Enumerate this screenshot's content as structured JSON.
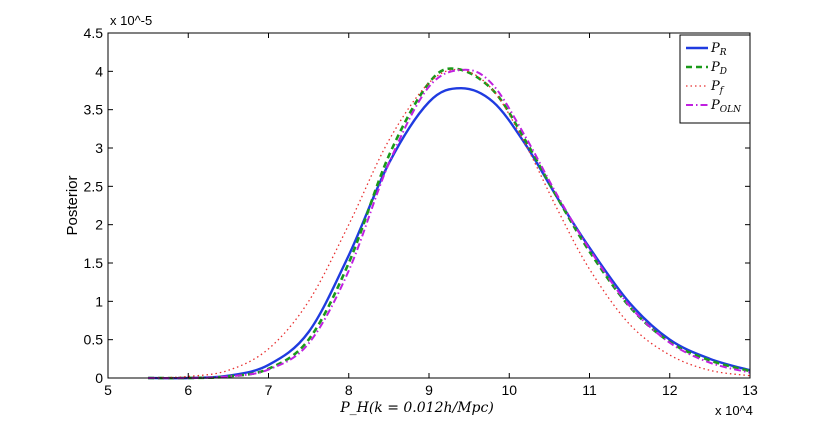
{
  "chart_data": {
    "type": "line",
    "title": "",
    "xlabel": "P_H(k = 0.012h/Mpc)",
    "ylabel": "Posterior",
    "x_multiplier": "x 10^4",
    "y_multiplier": "x 10^-5",
    "xlim": [
      5,
      13
    ],
    "ylim": [
      0,
      4.5
    ],
    "xticks": [
      5,
      6,
      7,
      8,
      9,
      10,
      11,
      12,
      13
    ],
    "yticks": [
      0,
      0.5,
      1,
      1.5,
      2,
      2.5,
      3,
      3.5,
      4,
      4.5
    ],
    "grid": false,
    "legend_position": "top-right",
    "series": [
      {
        "name": "P_R",
        "color": "#1f3be0",
        "style": "solid",
        "x": [
          5.5,
          6.0,
          6.5,
          7.0,
          7.5,
          8.0,
          8.5,
          9.0,
          9.4,
          9.8,
          10.2,
          10.6,
          11.0,
          11.5,
          12.0,
          12.5,
          13.0
        ],
        "y": [
          0.0,
          0.0,
          0.03,
          0.17,
          0.6,
          1.6,
          2.8,
          3.6,
          3.78,
          3.6,
          3.05,
          2.35,
          1.7,
          0.98,
          0.5,
          0.25,
          0.1
        ]
      },
      {
        "name": "P_D",
        "color": "#1a9a1a",
        "style": "dashed",
        "x": [
          5.5,
          6.0,
          6.5,
          7.0,
          7.5,
          8.0,
          8.5,
          9.0,
          9.35,
          9.8,
          10.2,
          10.6,
          11.0,
          11.5,
          12.0,
          12.5,
          13.0
        ],
        "y": [
          0.0,
          0.0,
          0.02,
          0.12,
          0.5,
          1.5,
          2.9,
          3.85,
          4.03,
          3.75,
          3.1,
          2.35,
          1.65,
          0.93,
          0.47,
          0.23,
          0.09
        ]
      },
      {
        "name": "P_f",
        "color": "#e83030",
        "style": "dotted",
        "x": [
          5.5,
          6.0,
          6.5,
          7.0,
          7.5,
          8.0,
          8.5,
          9.0,
          9.4,
          9.8,
          10.2,
          10.6,
          11.0,
          11.5,
          12.0,
          12.5,
          13.0
        ],
        "y": [
          0.0,
          0.02,
          0.1,
          0.38,
          1.0,
          2.0,
          3.1,
          3.85,
          4.02,
          3.75,
          3.05,
          2.2,
          1.42,
          0.7,
          0.3,
          0.1,
          0.03
        ]
      },
      {
        "name": "P_OLN",
        "color": "#c020e0",
        "style": "dashdot",
        "x": [
          5.5,
          6.0,
          6.5,
          7.0,
          7.5,
          8.0,
          8.5,
          9.0,
          9.45,
          9.8,
          10.2,
          10.6,
          11.0,
          11.5,
          12.0,
          12.5,
          13.0
        ],
        "y": [
          0.0,
          0.0,
          0.02,
          0.11,
          0.45,
          1.4,
          2.8,
          3.8,
          4.02,
          3.82,
          3.15,
          2.38,
          1.68,
          0.94,
          0.46,
          0.2,
          0.07
        ]
      }
    ]
  }
}
